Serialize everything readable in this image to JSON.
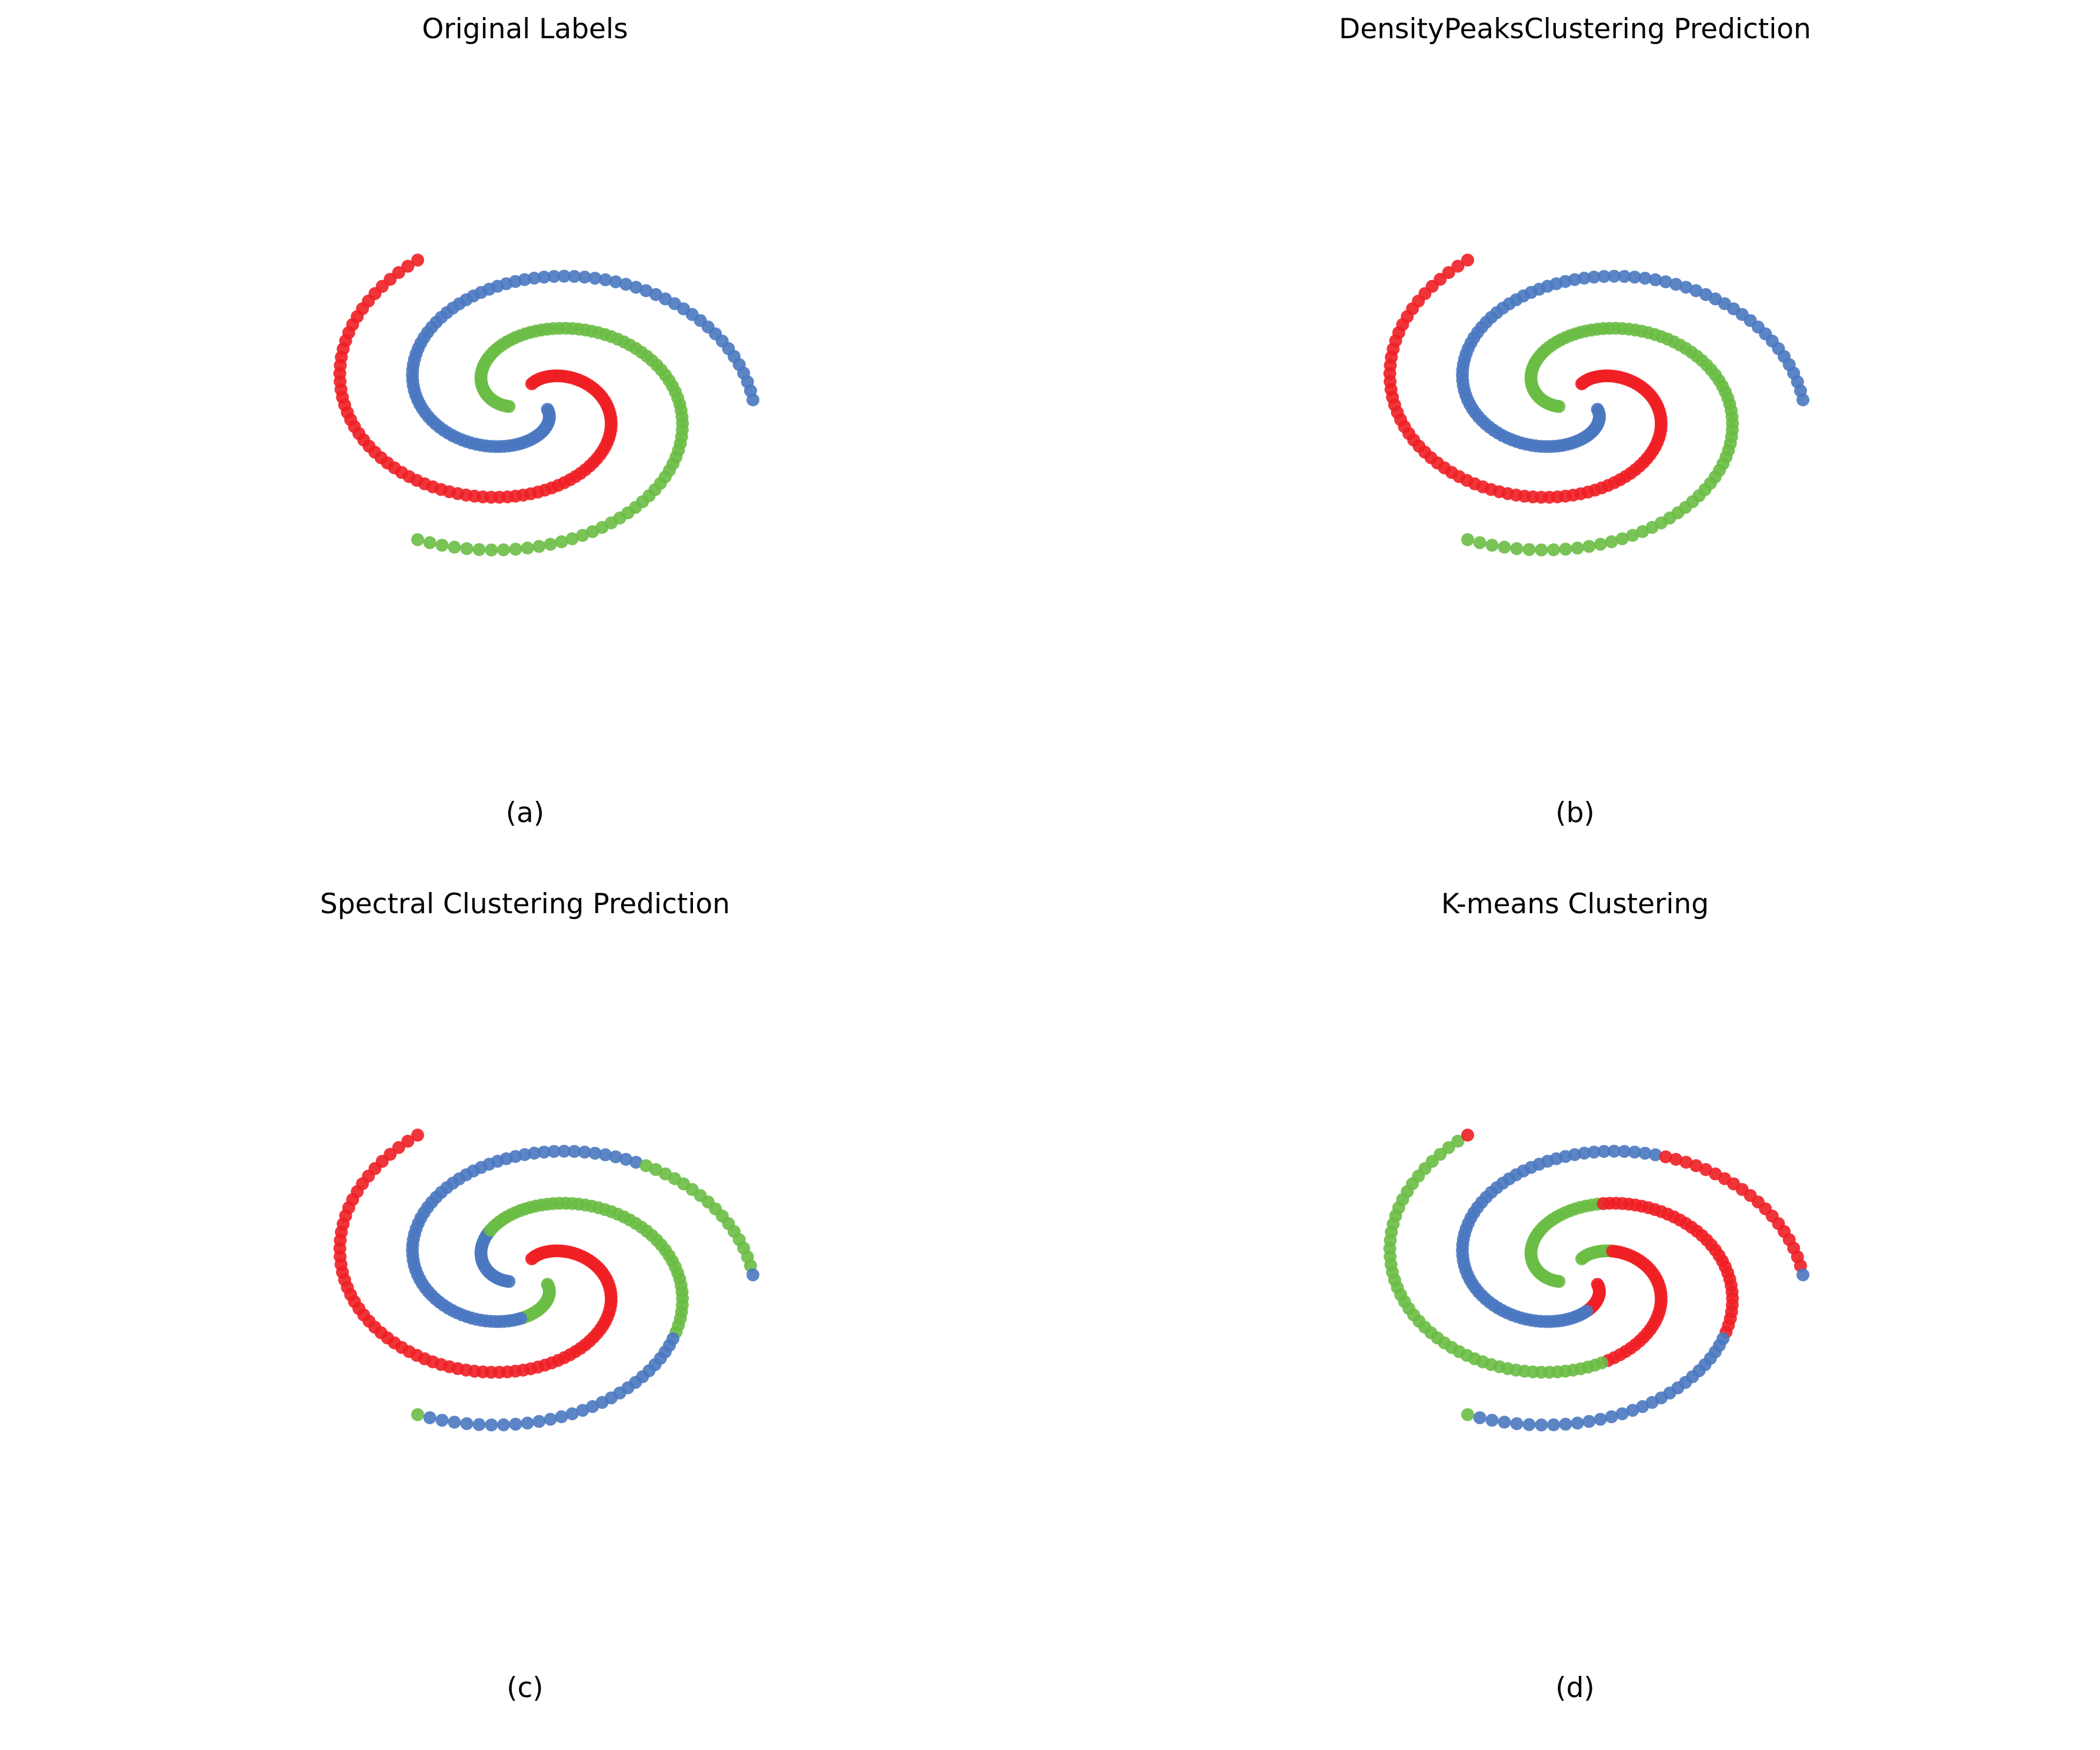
{
  "colors": {
    "class_blue": "#4a78c0",
    "class_red": "#ee1f25",
    "class_green": "#6abd45"
  },
  "chart_data": [
    {
      "type": "scatter",
      "title": "Original Labels",
      "caption": "(a)",
      "grid": false,
      "axes_visible": false,
      "xlim": [
        -1.0,
        1.0
      ],
      "ylim": [
        -1.0,
        1.0
      ],
      "spiral": {
        "turns": 1.0,
        "t_min": 0.1,
        "t_max": 1.0,
        "radius_scale": 1.0,
        "points_per_arm": 100
      },
      "arms": [
        {
          "phase_deg": 0,
          "color": "class_blue",
          "segments": []
        },
        {
          "phase_deg": 120,
          "color": "class_green",
          "segments": []
        },
        {
          "phase_deg": 240,
          "color": "class_red",
          "segments": []
        }
      ]
    },
    {
      "type": "scatter",
      "title": "DensityPeaksClustering Prediction",
      "caption": "(b)",
      "grid": false,
      "axes_visible": false,
      "xlim": [
        -1.0,
        1.0
      ],
      "ylim": [
        -1.0,
        1.0
      ],
      "spiral": {
        "turns": 1.0,
        "t_min": 0.1,
        "t_max": 1.0,
        "radius_scale": 1.0,
        "points_per_arm": 100
      },
      "arms": [
        {
          "phase_deg": 0,
          "color": "class_blue",
          "segments": []
        },
        {
          "phase_deg": 120,
          "color": "class_green",
          "segments": []
        },
        {
          "phase_deg": 240,
          "color": "class_red",
          "segments": []
        }
      ]
    },
    {
      "type": "scatter",
      "title": "Spectral Clustering Prediction",
      "caption": "(c)",
      "grid": false,
      "axes_visible": false,
      "xlim": [
        -1.0,
        1.0
      ],
      "ylim": [
        -1.0,
        1.0
      ],
      "spiral": {
        "turns": 1.0,
        "t_min": 0.1,
        "t_max": 1.0,
        "radius_scale": 1.0,
        "points_per_arm": 100
      },
      "arms": [
        {
          "phase_deg": 0,
          "color": "class_blue",
          "segments": [
            {
              "from": 0.1,
              "to": 0.27,
              "color": "class_green"
            },
            {
              "from": 0.27,
              "to": 0.85,
              "color": "class_blue"
            },
            {
              "from": 0.85,
              "to": 1.0,
              "color": "class_green"
            }
          ]
        },
        {
          "phase_deg": 120,
          "color": "class_green",
          "segments": [
            {
              "from": 0.1,
              "to": 0.32,
              "color": "class_blue"
            },
            {
              "from": 0.32,
              "to": 0.75,
              "color": "class_green"
            },
            {
              "from": 0.75,
              "to": 1.0,
              "color": "class_blue"
            }
          ]
        },
        {
          "phase_deg": 240,
          "color": "class_red",
          "segments": []
        }
      ]
    },
    {
      "type": "scatter",
      "title": "K-means Clustering",
      "caption": "(d)",
      "grid": false,
      "axes_visible": false,
      "xlim": [
        -1.0,
        1.0
      ],
      "ylim": [
        -1.0,
        1.0
      ],
      "spiral": {
        "turns": 1.0,
        "t_min": 0.1,
        "t_max": 1.0,
        "radius_scale": 1.0,
        "points_per_arm": 100
      },
      "arms": [
        {
          "phase_deg": 0,
          "color": "class_blue",
          "segments": [
            {
              "from": 0.1,
              "to": 0.22,
              "color": "class_red"
            },
            {
              "from": 0.22,
              "to": 0.82,
              "color": "class_blue"
            },
            {
              "from": 0.82,
              "to": 1.0,
              "color": "class_red"
            }
          ]
        },
        {
          "phase_deg": 120,
          "color": "class_green",
          "segments": [
            {
              "from": 0.1,
              "to": 0.45,
              "color": "class_green"
            },
            {
              "from": 0.45,
              "to": 0.75,
              "color": "class_red"
            },
            {
              "from": 0.75,
              "to": 1.0,
              "color": "class_blue"
            }
          ]
        },
        {
          "phase_deg": 240,
          "color": "class_red",
          "segments": [
            {
              "from": 0.1,
              "to": 0.2,
              "color": "class_green"
            },
            {
              "from": 0.2,
              "to": 0.55,
              "color": "class_red"
            },
            {
              "from": 0.55,
              "to": 1.0,
              "color": "class_green"
            }
          ]
        }
      ]
    }
  ]
}
